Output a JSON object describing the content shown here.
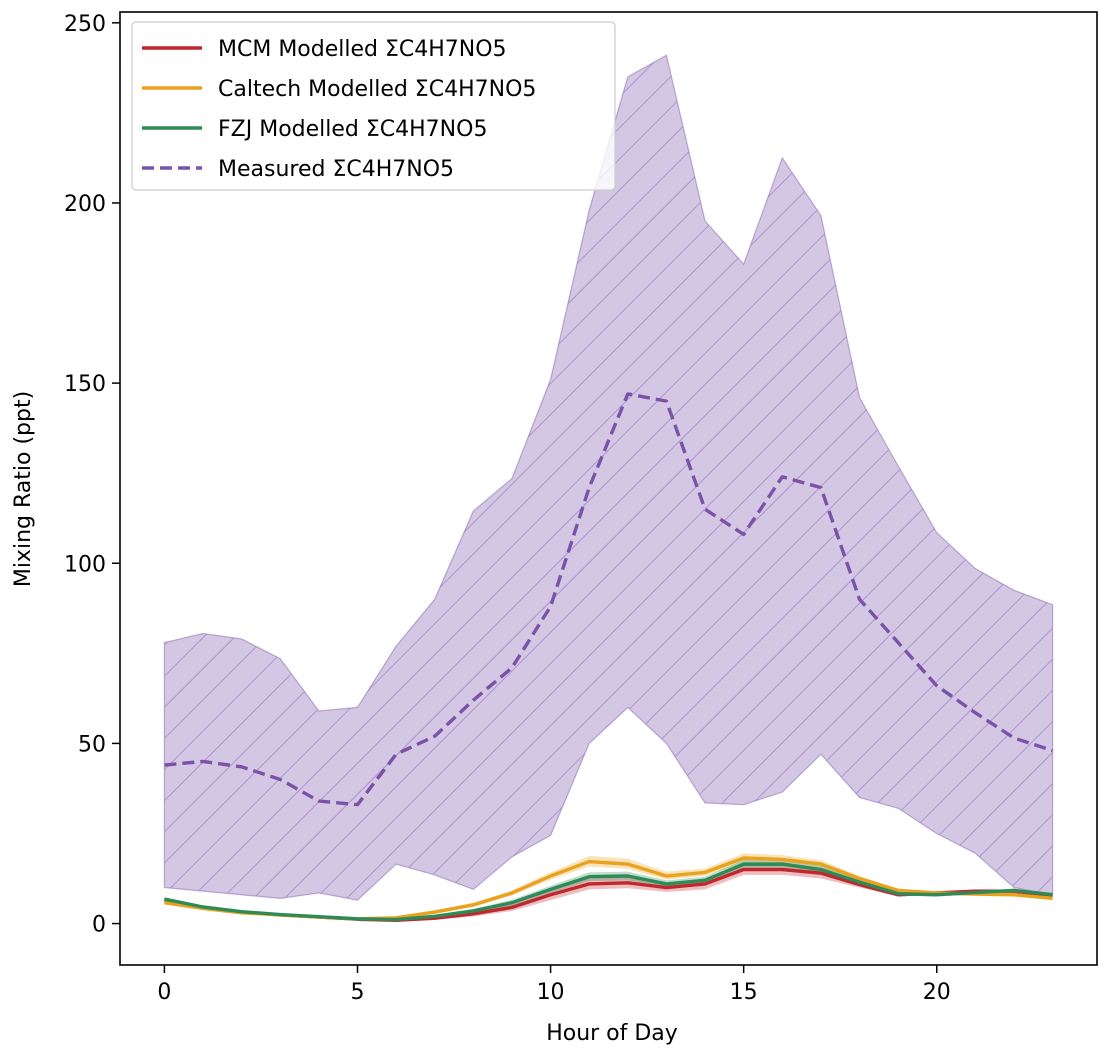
{
  "chart_data": {
    "type": "line",
    "xlabel": "Hour of Day",
    "ylabel": "Mixing Ratio (ppt)",
    "xlim": [
      -1.15,
      24.15
    ],
    "ylim": [
      -11.5,
      253
    ],
    "x_ticks": [
      0,
      5,
      10,
      15,
      20
    ],
    "y_ticks": [
      0,
      50,
      100,
      150,
      200,
      250
    ],
    "grid": false,
    "legend_position": "top-left",
    "x": [
      0,
      1,
      2,
      3,
      4,
      5,
      6,
      7,
      8,
      9,
      10,
      11,
      12,
      13,
      14,
      15,
      16,
      17,
      18,
      19,
      20,
      21,
      22,
      23
    ],
    "series": [
      {
        "name": "MCM Modelled ΣC4H7NO5",
        "color": "#c0282d",
        "style": "solid",
        "values": [
          6.5,
          4.5,
          3.2,
          2.4,
          1.8,
          1.2,
          0.9,
          1.5,
          2.7,
          4.5,
          8.0,
          11.0,
          11.3,
          10.0,
          11.0,
          15.0,
          15.0,
          14.0,
          10.8,
          8.0,
          8.5,
          9.0,
          9.0,
          7.5
        ],
        "band_lower": [
          6.0,
          4.0,
          2.8,
          2.0,
          1.4,
          0.9,
          0.5,
          1.0,
          2.0,
          3.5,
          6.5,
          9.5,
          9.8,
          8.8,
          9.5,
          13.5,
          13.5,
          12.5,
          10.0,
          7.5,
          8.0,
          8.5,
          8.5,
          7.0
        ],
        "band_upper": [
          7.0,
          5.0,
          3.6,
          2.8,
          2.2,
          1.5,
          1.3,
          2.0,
          3.4,
          5.5,
          9.5,
          12.5,
          12.8,
          11.2,
          12.5,
          16.5,
          16.5,
          15.5,
          11.6,
          8.5,
          9.0,
          9.5,
          9.5,
          8.0
        ]
      },
      {
        "name": "Caltech Modelled ΣC4H7NO5",
        "color": "#e8a21e",
        "style": "solid",
        "values": [
          5.8,
          4.2,
          3.0,
          2.4,
          1.8,
          1.3,
          1.6,
          3.2,
          5.2,
          8.5,
          13.2,
          17.2,
          16.5,
          13.2,
          14.2,
          18.2,
          17.8,
          16.5,
          12.5,
          9.2,
          8.5,
          8.2,
          8.0,
          7.0
        ],
        "band_lower": [
          5.5,
          3.9,
          2.7,
          2.1,
          1.5,
          1.0,
          1.3,
          2.7,
          4.6,
          7.8,
          12.2,
          15.8,
          15.2,
          12.2,
          13.2,
          17.0,
          16.6,
          15.4,
          11.8,
          8.7,
          8.0,
          7.7,
          7.5,
          6.5
        ],
        "band_upper": [
          6.1,
          4.5,
          3.3,
          2.7,
          2.1,
          1.6,
          1.9,
          3.7,
          5.8,
          9.2,
          14.2,
          18.8,
          18.0,
          14.4,
          15.3,
          19.5,
          19.0,
          17.6,
          13.2,
          9.7,
          9.0,
          8.7,
          8.5,
          7.5
        ]
      },
      {
        "name": "FZJ Modelled ΣC4H7NO5",
        "color": "#2e8b57",
        "style": "solid",
        "values": [
          6.8,
          4.6,
          3.3,
          2.5,
          1.9,
          1.3,
          1.1,
          2.0,
          3.5,
          5.8,
          9.5,
          13.0,
          13.2,
          11.0,
          12.0,
          16.5,
          16.5,
          15.0,
          11.5,
          8.3,
          8.0,
          8.6,
          9.2,
          8.0
        ],
        "band_lower": [
          6.4,
          4.3,
          3.0,
          2.2,
          1.6,
          1.0,
          0.8,
          1.6,
          2.9,
          5.0,
          8.5,
          11.8,
          12.0,
          10.0,
          11.0,
          15.3,
          15.3,
          14.0,
          10.8,
          7.8,
          7.5,
          8.1,
          8.7,
          7.5
        ],
        "band_upper": [
          7.2,
          4.9,
          3.6,
          2.8,
          2.2,
          1.6,
          1.4,
          2.4,
          4.1,
          6.6,
          10.5,
          14.2,
          14.4,
          12.0,
          13.0,
          17.7,
          17.7,
          16.0,
          12.2,
          8.8,
          8.5,
          9.1,
          9.7,
          8.5
        ]
      },
      {
        "name": "Measured ΣC4H7NO5",
        "color": "#7a52a8",
        "style": "dashed",
        "values": [
          44,
          45,
          43.5,
          40,
          34,
          33,
          47,
          52,
          62,
          71,
          88,
          121,
          147,
          145,
          115,
          108,
          124,
          121,
          90,
          78,
          66,
          58.5,
          51.5,
          48
        ],
        "band_lower": [
          10,
          9,
          8,
          7,
          8.5,
          6.5,
          16.5,
          13.5,
          9.5,
          18.5,
          24.5,
          50,
          60,
          50,
          33.5,
          33,
          36.5,
          47,
          35,
          32,
          25,
          19.5,
          10,
          8
        ],
        "band_upper": [
          78,
          80.5,
          79,
          73.5,
          59,
          60,
          77,
          90,
          114.5,
          123.5,
          151,
          198,
          235,
          241,
          195,
          183,
          212.5,
          196.5,
          146,
          127,
          108.5,
          98.5,
          92.5,
          88.5
        ]
      }
    ]
  }
}
